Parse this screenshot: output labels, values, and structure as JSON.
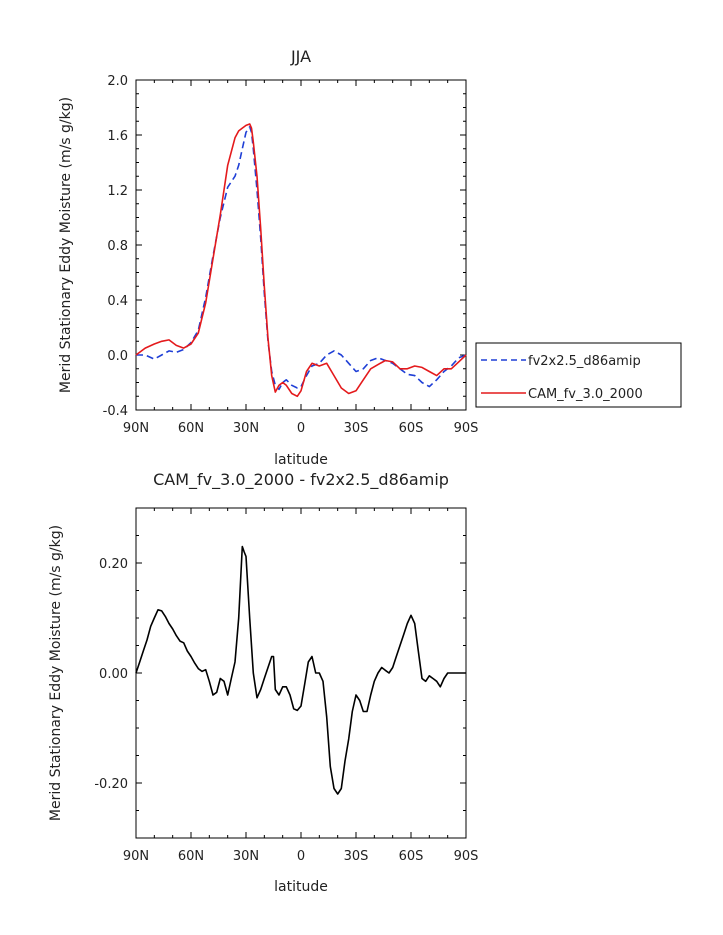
{
  "chart_data": [
    {
      "type": "line",
      "title": "JJA",
      "xlabel": "latitude",
      "ylabel": "Merid Stationary Eddy Moisture (m/s g/kg)",
      "xlim": [
        90,
        -90
      ],
      "ylim": [
        -0.4,
        2.0
      ],
      "x_ticks": [
        {
          "value": 90,
          "label": "90N"
        },
        {
          "value": 60,
          "label": "60N"
        },
        {
          "value": 30,
          "label": "30N"
        },
        {
          "value": 0,
          "label": "0"
        },
        {
          "value": -30,
          "label": "30S"
        },
        {
          "value": -60,
          "label": "60S"
        },
        {
          "value": -90,
          "label": "90S"
        }
      ],
      "y_ticks": [
        {
          "value": 2.0,
          "label": "2.0"
        },
        {
          "value": 1.6,
          "label": "1.6"
        },
        {
          "value": 1.2,
          "label": "1.2"
        },
        {
          "value": 0.8,
          "label": "0.8"
        },
        {
          "value": 0.4,
          "label": "0.4"
        },
        {
          "value": 0.0,
          "label": "0.0"
        },
        {
          "value": -0.4,
          "label": "-0.4"
        }
      ],
      "legend_position": "right",
      "series": [
        {
          "name": "fv2x2.5_d86amip",
          "color": "#1f3fd6",
          "dash": "dashed",
          "x": [
            90,
            85,
            80,
            76,
            72,
            68,
            64,
            60,
            56,
            52,
            48,
            44,
            40,
            36,
            34,
            32,
            30,
            28,
            27,
            26,
            24,
            22,
            20,
            18,
            16,
            14,
            12,
            10,
            8,
            5,
            2,
            0,
            -3,
            -6,
            -10,
            -14,
            -18,
            -22,
            -26,
            -30,
            -34,
            -38,
            -42,
            -46,
            -50,
            -54,
            -58,
            -62,
            -66,
            -70,
            -74,
            -78,
            -82,
            -86,
            -90
          ],
          "y": [
            0.0,
            0.0,
            -0.03,
            0.0,
            0.03,
            0.02,
            0.04,
            0.09,
            0.18,
            0.42,
            0.72,
            1.0,
            1.22,
            1.3,
            1.38,
            1.5,
            1.62,
            1.66,
            1.62,
            1.5,
            1.2,
            0.85,
            0.45,
            0.1,
            -0.12,
            -0.22,
            -0.25,
            -0.2,
            -0.18,
            -0.22,
            -0.24,
            -0.23,
            -0.15,
            -0.08,
            -0.06,
            0.0,
            0.03,
            0.0,
            -0.06,
            -0.12,
            -0.1,
            -0.04,
            -0.02,
            -0.04,
            -0.06,
            -0.1,
            -0.14,
            -0.15,
            -0.2,
            -0.23,
            -0.18,
            -0.12,
            -0.08,
            -0.02,
            0.0
          ]
        },
        {
          "name": "CAM_fv_3.0_2000",
          "color": "#e41a1c",
          "dash": "solid",
          "x": [
            90,
            85,
            80,
            76,
            72,
            68,
            64,
            60,
            56,
            52,
            48,
            44,
            40,
            36,
            34,
            32,
            30,
            28,
            27,
            26,
            24,
            22,
            20,
            18,
            16,
            14,
            12,
            10,
            8,
            5,
            2,
            0,
            -3,
            -6,
            -10,
            -14,
            -18,
            -22,
            -26,
            -30,
            -34,
            -38,
            -42,
            -46,
            -50,
            -54,
            -58,
            -62,
            -66,
            -70,
            -74,
            -78,
            -82,
            -86,
            -90
          ],
          "y": [
            0.0,
            0.05,
            0.08,
            0.1,
            0.11,
            0.07,
            0.05,
            0.08,
            0.16,
            0.38,
            0.7,
            1.02,
            1.38,
            1.58,
            1.63,
            1.65,
            1.67,
            1.68,
            1.65,
            1.55,
            1.3,
            0.92,
            0.5,
            0.12,
            -0.15,
            -0.27,
            -0.22,
            -0.2,
            -0.22,
            -0.28,
            -0.3,
            -0.26,
            -0.12,
            -0.06,
            -0.08,
            -0.06,
            -0.15,
            -0.24,
            -0.28,
            -0.26,
            -0.18,
            -0.1,
            -0.07,
            -0.04,
            -0.05,
            -0.1,
            -0.1,
            -0.08,
            -0.09,
            -0.12,
            -0.15,
            -0.1,
            -0.1,
            -0.05,
            0.0
          ]
        }
      ]
    },
    {
      "type": "line",
      "title": "CAM_fv_3.0_2000 - fv2x2.5_d86amip",
      "xlabel": "latitude",
      "ylabel": "Merid Stationary Eddy Moisture (m/s g/kg)",
      "xlim": [
        90,
        -90
      ],
      "ylim": [
        -0.3,
        0.3
      ],
      "x_ticks": [
        {
          "value": 90,
          "label": "90N"
        },
        {
          "value": 60,
          "label": "60N"
        },
        {
          "value": 30,
          "label": "30N"
        },
        {
          "value": 0,
          "label": "0"
        },
        {
          "value": -30,
          "label": "30S"
        },
        {
          "value": -60,
          "label": "60S"
        },
        {
          "value": -90,
          "label": "90S"
        }
      ],
      "y_ticks": [
        {
          "value": 0.2,
          "label": "0.20"
        },
        {
          "value": 0.0,
          "label": "0.00"
        },
        {
          "value": -0.2,
          "label": "-0.20"
        }
      ],
      "series": [
        {
          "color": "#000000",
          "dash": "solid",
          "x": [
            90,
            88,
            86,
            84,
            82,
            80,
            78,
            76,
            74,
            72,
            70,
            68,
            66,
            64,
            62,
            60,
            58,
            56,
            54,
            52,
            50,
            48,
            46,
            44,
            42,
            40,
            38,
            36,
            34,
            32,
            31,
            30,
            28,
            26,
            24,
            22,
            20,
            18,
            16,
            15,
            14,
            12,
            10,
            8,
            6,
            4,
            2,
            0,
            -2,
            -4,
            -6,
            -8,
            -10,
            -12,
            -14,
            -16,
            -18,
            -20,
            -22,
            -24,
            -26,
            -28,
            -30,
            -32,
            -34,
            -36,
            -38,
            -40,
            -42,
            -44,
            -46,
            -48,
            -50,
            -52,
            -54,
            -56,
            -58,
            -60,
            -62,
            -64,
            -66,
            -68,
            -70,
            -72,
            -74,
            -76,
            -78,
            -80,
            -82,
            -84,
            -86,
            -88,
            -90
          ],
          "y": [
            0.0,
            0.02,
            0.04,
            0.06,
            0.085,
            0.1,
            0.115,
            0.113,
            0.103,
            0.09,
            0.08,
            0.068,
            0.058,
            0.055,
            0.04,
            0.03,
            0.018,
            0.008,
            0.003,
            0.006,
            -0.015,
            -0.04,
            -0.035,
            -0.01,
            -0.015,
            -0.04,
            -0.01,
            0.02,
            0.1,
            0.23,
            0.22,
            0.212,
            0.1,
            0.0,
            -0.045,
            -0.03,
            -0.01,
            0.01,
            0.03,
            0.03,
            -0.03,
            -0.04,
            -0.025,
            -0.025,
            -0.04,
            -0.065,
            -0.068,
            -0.06,
            -0.02,
            0.02,
            0.03,
            0.0,
            0.0,
            -0.015,
            -0.08,
            -0.17,
            -0.21,
            -0.22,
            -0.21,
            -0.16,
            -0.12,
            -0.07,
            -0.04,
            -0.05,
            -0.07,
            -0.07,
            -0.04,
            -0.015,
            0.0,
            0.01,
            0.005,
            0.0,
            0.01,
            0.03,
            0.05,
            0.07,
            0.09,
            0.105,
            0.09,
            0.04,
            -0.01,
            -0.015,
            -0.005,
            -0.01,
            -0.015,
            -0.025,
            -0.01,
            0.0,
            0.0,
            0.0,
            0.0,
            0.0,
            0.0
          ]
        }
      ]
    }
  ]
}
